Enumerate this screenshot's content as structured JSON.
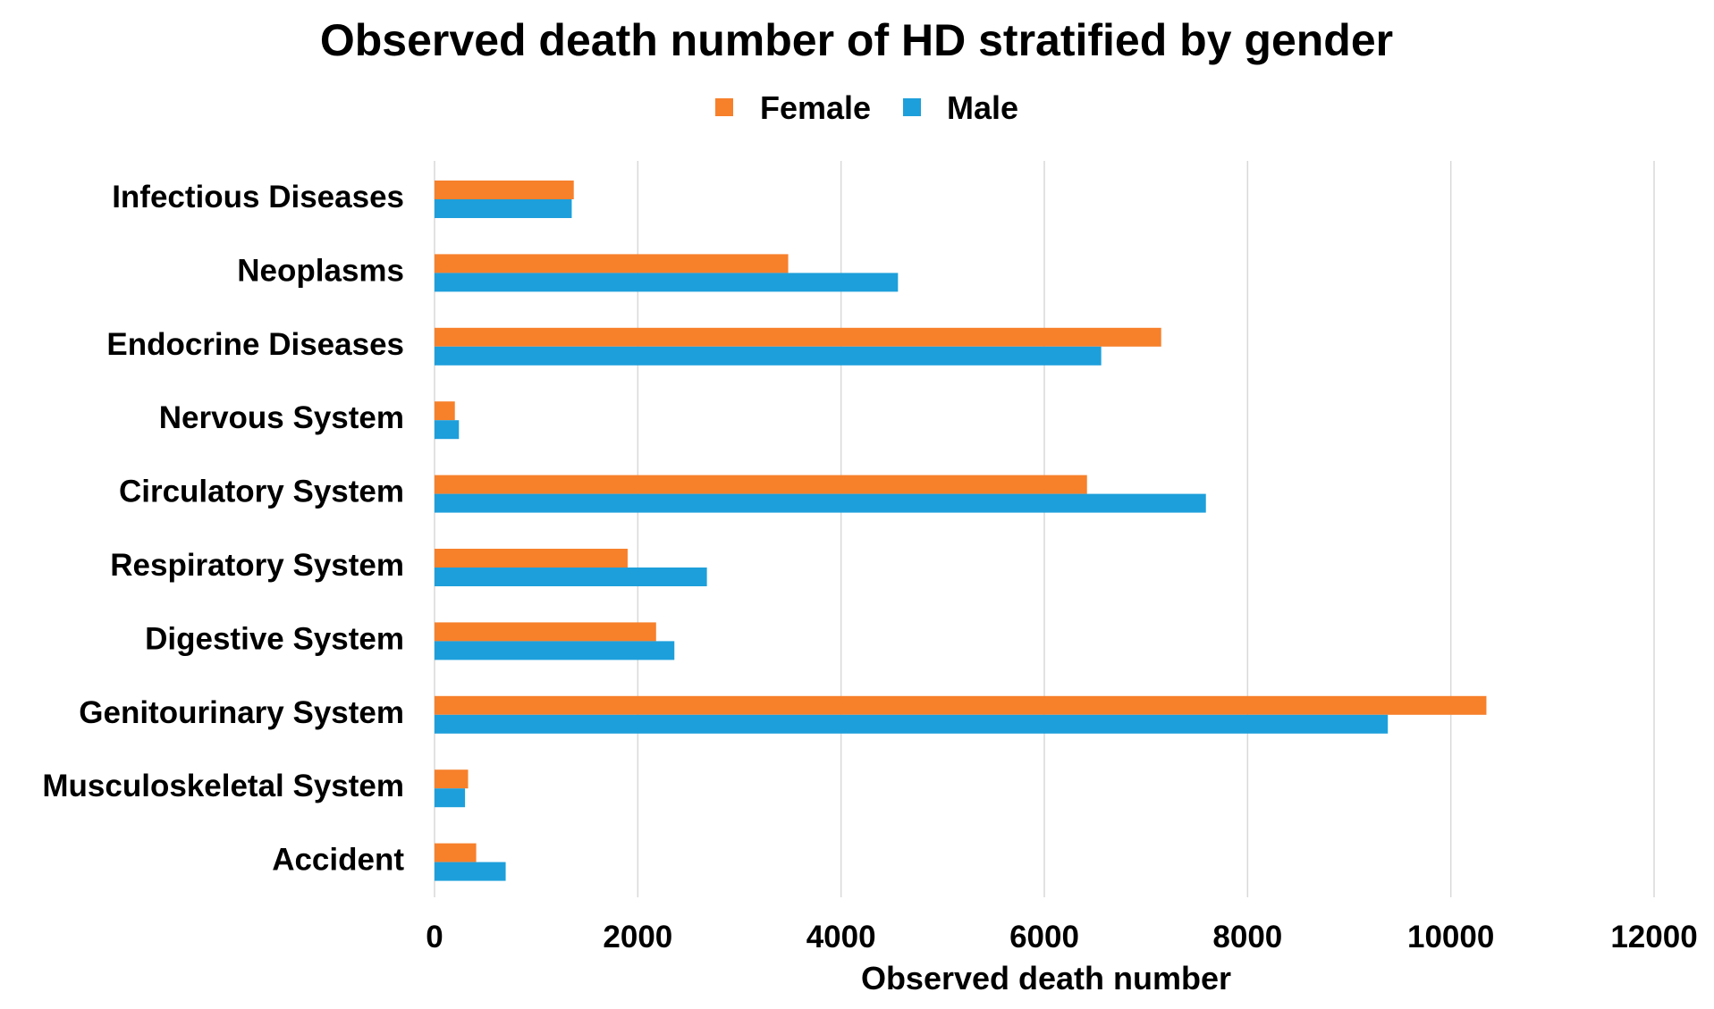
{
  "chart_data": {
    "type": "bar",
    "orientation": "horizontal",
    "title": "Observed death number of HD stratified by gender",
    "xlabel": "Observed death number",
    "ylabel": "",
    "xlim": [
      0,
      12000
    ],
    "xticks": [
      "0",
      "2000",
      "4000",
      "6000",
      "8000",
      "10000",
      "12000"
    ],
    "grid": true,
    "legend_position": "top",
    "categories": [
      "Infectious Diseases",
      "Neoplasms",
      "Endocrine Diseases",
      "Nervous System",
      "Circulatory System",
      "Respiratory System",
      "Digestive System",
      "Genitourinary System",
      "Musculoskeletal System",
      "Accident"
    ],
    "series": [
      {
        "name": "Female",
        "color": "#F7802B",
        "values": [
          1370,
          3480,
          7150,
          200,
          6420,
          1900,
          2180,
          10350,
          330,
          410
        ]
      },
      {
        "name": "Male",
        "color": "#1D9FDB",
        "values": [
          1350,
          4560,
          6560,
          240,
          7590,
          2680,
          2360,
          9380,
          300,
          700
        ]
      }
    ]
  }
}
